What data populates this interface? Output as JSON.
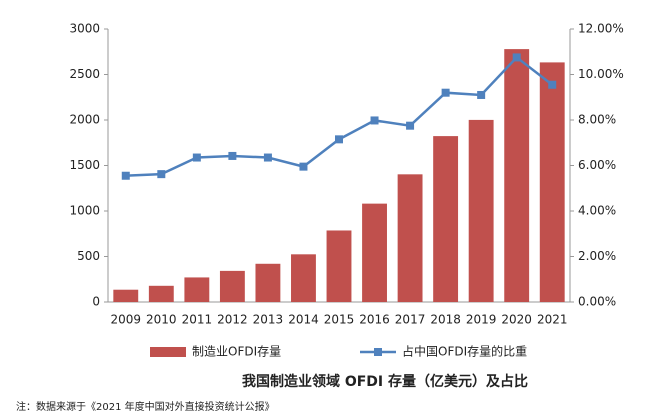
{
  "chart_data": {
    "type": "bar-line",
    "title": "我国制造业领域 OFDI 存量（亿美元）及占比",
    "note": "注：数据来源于《2021 年度中国对外直接投资统计公报》",
    "categories": [
      "2009",
      "2010",
      "2011",
      "2012",
      "2013",
      "2014",
      "2015",
      "2016",
      "2017",
      "2018",
      "2019",
      "2020",
      "2021"
    ],
    "series": [
      {
        "name": "制造业OFDI存量",
        "color": "#c0504d",
        "type": "bar",
        "values": [
          135,
          178,
          270,
          342,
          420,
          524,
          786,
          1081,
          1403,
          1823,
          2001,
          2779,
          2633
        ]
      },
      {
        "name": "占中国OFDI存量的比重",
        "color": "#4f81bd",
        "type": "line",
        "axis": "y2",
        "values": [
          5.55,
          5.62,
          6.35,
          6.42,
          6.35,
          5.95,
          7.15,
          7.98,
          7.75,
          9.2,
          9.1,
          10.75,
          9.55
        ]
      }
    ],
    "ylim": [
      0,
      3000
    ],
    "yticks": [
      0,
      500,
      1000,
      1500,
      2000,
      2500,
      3000
    ],
    "y2lim": [
      0,
      12
    ],
    "y2ticks": [
      {
        "value": 0,
        "label": "0.00%"
      },
      {
        "value": 2,
        "label": "2.00%"
      },
      {
        "value": 4,
        "label": "4.00%"
      },
      {
        "value": 6,
        "label": "6.00%"
      },
      {
        "value": 8,
        "label": "8.00%"
      },
      {
        "value": 10,
        "label": "10.00%"
      },
      {
        "value": 12,
        "label": "12.00%"
      }
    ],
    "grid": false
  }
}
